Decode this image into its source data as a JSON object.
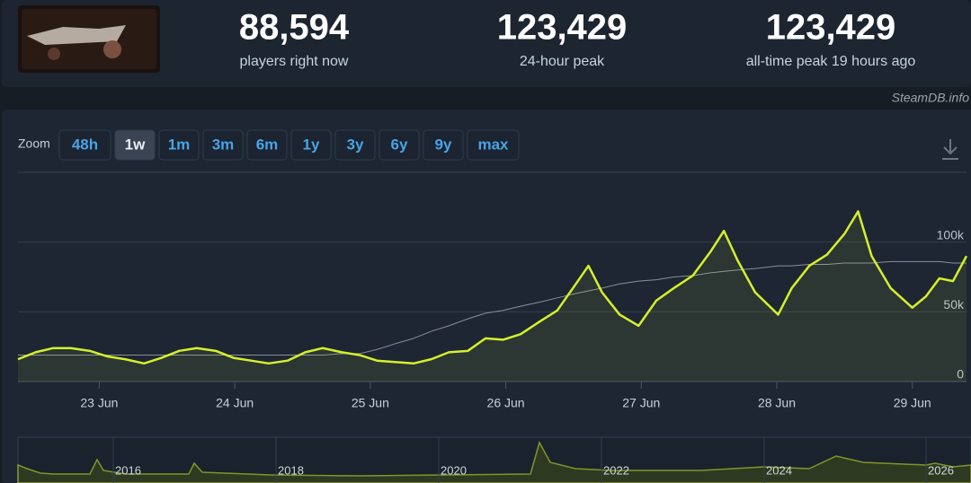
{
  "stats": [
    {
      "value": "88,594",
      "label": "players right now"
    },
    {
      "value": "123,429",
      "label": "24-hour peak"
    },
    {
      "value": "123,429",
      "label": "all-time peak 19 hours ago"
    }
  ],
  "watermark": "SteamDB.info",
  "zoom": {
    "label": "Zoom",
    "buttons": [
      "48h",
      "1w",
      "1m",
      "3m",
      "6m",
      "1y",
      "3y",
      "6y",
      "9y",
      "max"
    ],
    "active": "1w"
  },
  "navigator": {
    "years": [
      "2016",
      "2018",
      "2020",
      "2022",
      "2024",
      "2026"
    ]
  },
  "chart_data": {
    "type": "line",
    "x": [
      22.4,
      22.53,
      22.66,
      22.79,
      22.93,
      23.06,
      23.19,
      23.33,
      23.46,
      23.59,
      23.72,
      23.86,
      23.99,
      24.12,
      24.25,
      24.39,
      24.52,
      24.65,
      24.79,
      24.92,
      25.05,
      25.18,
      25.32,
      25.45,
      25.58,
      25.72,
      25.85,
      25.98,
      26.11,
      26.25,
      26.38,
      26.51,
      26.61,
      26.71,
      26.84,
      26.98,
      27.11,
      27.24,
      27.38,
      27.51,
      27.61,
      27.71,
      27.84,
      28.01,
      28.11,
      28.24,
      28.37,
      28.5,
      28.6,
      28.7,
      28.84,
      29.0,
      29.1,
      29.2,
      29.3,
      29.4
    ],
    "series": [
      {
        "color": "#d4f02c",
        "values": [
          16000,
          21000,
          24000,
          24000,
          22000,
          18000,
          16000,
          13000,
          17000,
          22000,
          24000,
          22000,
          17000,
          15000,
          13000,
          15000,
          21000,
          24000,
          21000,
          19000,
          15000,
          14000,
          13000,
          16000,
          21000,
          22000,
          31000,
          30000,
          34000,
          43000,
          51000,
          69000,
          83000,
          64000,
          48000,
          40000,
          58000,
          67000,
          76000,
          93000,
          108000,
          87000,
          64000,
          48000,
          67000,
          83000,
          91000,
          106000,
          122000,
          90000,
          67000,
          53000,
          61000,
          74000,
          72000,
          90000
        ]
      },
      {
        "color": "#8a8f98",
        "values": [
          19000,
          19000,
          19000,
          19000,
          19000,
          19000,
          19000,
          19000,
          19000,
          19000,
          19000,
          19000,
          19000,
          19000,
          19000,
          19000,
          19000,
          19000,
          20000,
          20000,
          23000,
          27000,
          31000,
          36000,
          40000,
          45000,
          49000,
          51000,
          54000,
          57000,
          60000,
          63000,
          65000,
          67000,
          70000,
          72000,
          73000,
          75000,
          76000,
          78000,
          79000,
          80000,
          81000,
          83000,
          83000,
          84000,
          84000,
          85000,
          85000,
          85000,
          86000,
          86000,
          86000,
          86000,
          85000,
          85000
        ]
      }
    ],
    "xlim": [
      22.4,
      29.4
    ],
    "xticks": [
      {
        "value": 23,
        "label": "23 Jun"
      },
      {
        "value": 24,
        "label": "24 Jun"
      },
      {
        "value": 25,
        "label": "25 Jun"
      },
      {
        "value": 26,
        "label": "26 Jun"
      },
      {
        "value": 27,
        "label": "27 Jun"
      },
      {
        "value": 28,
        "label": "28 Jun"
      },
      {
        "value": 29,
        "label": "29 Jun"
      }
    ],
    "ylim": [
      0,
      150000
    ],
    "yticks": [
      0,
      {
        "value": 50000,
        "label": "50k"
      },
      {
        "value": 100000,
        "label": "100k"
      }
    ],
    "grid": true
  }
}
